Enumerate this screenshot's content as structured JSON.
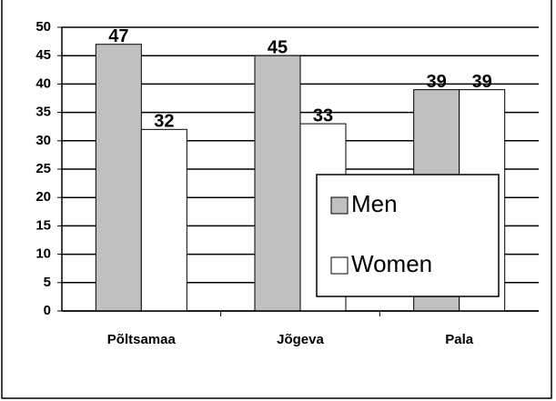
{
  "chart_data": {
    "type": "bar",
    "categories": [
      "Põltsamaa",
      "Jõgeva",
      "Pala"
    ],
    "series": [
      {
        "name": "Men",
        "color": "#c0c0c0",
        "values": [
          47,
          45,
          39
        ]
      },
      {
        "name": "Women",
        "color": "#ffffff",
        "values": [
          32,
          33,
          39
        ]
      }
    ],
    "ylim": [
      0,
      50
    ],
    "yticks": [
      0,
      5,
      10,
      15,
      20,
      25,
      30,
      35,
      40,
      45,
      50
    ],
    "grid": true
  }
}
